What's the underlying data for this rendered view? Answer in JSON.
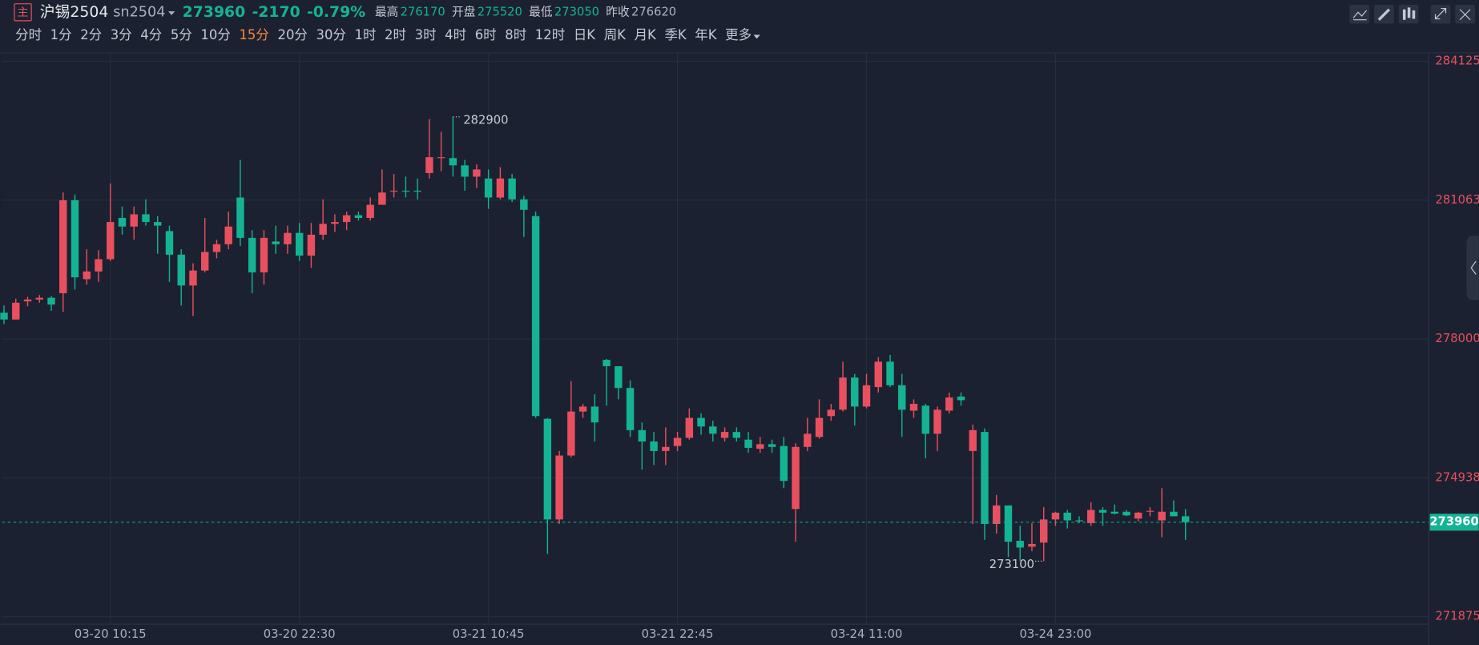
{
  "header": {
    "badge": "主",
    "name": "沪锡2504",
    "code": "sn2504",
    "price": 273960,
    "change": -2170,
    "change_pct": "-0.79%",
    "color": "#14b394",
    "stats": [
      {
        "label": "最高",
        "value": 276170,
        "color": "#14b394"
      },
      {
        "label": "开盘",
        "value": 275520,
        "color": "#14b394"
      },
      {
        "label": "最低",
        "value": 273050,
        "color": "#14b394"
      },
      {
        "label": "昨收",
        "value": 276620,
        "color": "#aab0bc"
      }
    ]
  },
  "toolbar": {
    "items": [
      {
        "label": "分时"
      },
      {
        "label": "1分"
      },
      {
        "label": "2分"
      },
      {
        "label": "3分"
      },
      {
        "label": "4分"
      },
      {
        "label": "5分"
      },
      {
        "label": "10分"
      },
      {
        "label": "15分",
        "active": true
      },
      {
        "label": "20分"
      },
      {
        "label": "30分"
      },
      {
        "label": "1时"
      },
      {
        "label": "2时"
      },
      {
        "label": "3时"
      },
      {
        "label": "4时"
      },
      {
        "label": "6时"
      },
      {
        "label": "8时"
      },
      {
        "label": "12时"
      },
      {
        "label": "日K"
      },
      {
        "label": "周K"
      },
      {
        "label": "月K"
      },
      {
        "label": "季K"
      },
      {
        "label": "年K"
      }
    ],
    "more": "更多"
  },
  "chart_data": {
    "type": "candlestick",
    "up_color": "#e8505f",
    "down_color": "#14b394",
    "grid": true,
    "axis_label_color": "#e8505f",
    "categories": [
      null,
      null,
      null,
      null,
      null,
      null,
      null,
      null,
      null,
      "03-20 10:15",
      null,
      null,
      null,
      null,
      null,
      null,
      null,
      null,
      null,
      null,
      null,
      null,
      null,
      null,
      null,
      "03-20 22:30",
      null,
      null,
      null,
      null,
      null,
      null,
      null,
      null,
      null,
      null,
      null,
      null,
      null,
      null,
      null,
      "03-21 10:45",
      null,
      null,
      null,
      null,
      null,
      null,
      null,
      null,
      null,
      null,
      null,
      null,
      null,
      null,
      null,
      "03-21 22:45",
      null,
      null,
      null,
      null,
      null,
      null,
      null,
      null,
      null,
      null,
      null,
      null,
      null,
      null,
      null,
      "03-24 11:00",
      null,
      null,
      null,
      null,
      null,
      null,
      null,
      null,
      null,
      null,
      null,
      null,
      null,
      null,
      null,
      "03-24 23:00",
      null,
      null,
      null,
      null,
      null,
      null,
      null,
      null,
      null,
      null,
      null
    ],
    "open": [
      278580,
      278430,
      278830,
      278870,
      278910,
      279010,
      281060,
      279320,
      279490,
      279760,
      280670,
      280480,
      280750,
      280580,
      280380,
      279860,
      279180,
      279510,
      279920,
      280090,
      281120,
      280230,
      279470,
      280150,
      280090,
      280340,
      279840,
      280300,
      280540,
      280580,
      280730,
      280670,
      280960,
      281250,
      281270,
      281270,
      281660,
      281990,
      281990,
      281830,
      281580,
      281540,
      281120,
      281540,
      281080,
      280710,
      276240,
      274020,
      275430,
      276400,
      276510,
      277540,
      277400,
      276920,
      275990,
      275740,
      275530,
      275640,
      275820,
      276260,
      276070,
      275820,
      275950,
      275780,
      275580,
      275680,
      275640,
      274250,
      275620,
      275840,
      276300,
      276440,
      277150,
      276510,
      276940,
      277500,
      276980,
      276420,
      276530,
      275910,
      276420,
      276730,
      275530,
      275950,
      273920,
      274330,
      273550,
      273420,
      273510,
      274020,
      274170,
      274000,
      273940,
      274230,
      274190,
      274190,
      274040,
      274190,
      274000,
      274190,
      274090
    ],
    "high": [
      278740,
      278890,
      278930,
      278970,
      278950,
      281230,
      281190,
      279980,
      279960,
      281430,
      280920,
      280920,
      281080,
      280710,
      280500,
      279980,
      279670,
      280670,
      280190,
      280810,
      281950,
      280400,
      280400,
      280500,
      280500,
      280560,
      280560,
      281080,
      280750,
      280810,
      280810,
      281120,
      281740,
      281640,
      281580,
      281540,
      282850,
      282570,
      282900,
      281950,
      281850,
      281740,
      281790,
      281640,
      281160,
      280810,
      276260,
      275530,
      277070,
      276570,
      276780,
      277560,
      277400,
      277090,
      276160,
      275950,
      276050,
      275950,
      276470,
      276360,
      276200,
      276050,
      276050,
      275950,
      275840,
      275780,
      275840,
      275700,
      276260,
      276670,
      276570,
      277500,
      277230,
      277230,
      277600,
      277650,
      277230,
      276670,
      276570,
      276510,
      276820,
      276820,
      276110,
      276030,
      274560,
      274330,
      273880,
      273940,
      274290,
      274190,
      274230,
      274090,
      274400,
      274290,
      274350,
      274230,
      274190,
      274290,
      274710,
      274440,
      274250
    ],
    "low": [
      278330,
      278430,
      278720,
      278800,
      278620,
      278600,
      279090,
      279200,
      279260,
      279720,
      280300,
      280190,
      280500,
      279880,
      279260,
      278740,
      278510,
      279470,
      279780,
      279980,
      280050,
      279010,
      279200,
      279880,
      279880,
      279720,
      279570,
      280190,
      280360,
      280400,
      280610,
      280610,
      280960,
      281120,
      281120,
      281080,
      281540,
      281700,
      281580,
      281270,
      281330,
      280870,
      281080,
      281020,
      280250,
      276260,
      273260,
      273920,
      275390,
      276260,
      275740,
      276530,
      276670,
      275840,
      275120,
      275220,
      275220,
      275530,
      275780,
      275890,
      275740,
      275740,
      275740,
      275490,
      275490,
      275490,
      274710,
      273530,
      275530,
      275800,
      276200,
      276400,
      276090,
      276470,
      276820,
      276940,
      275840,
      276260,
      275370,
      275530,
      276360,
      276530,
      273920,
      273570,
      273710,
      273190,
      273110,
      273320,
      273100,
      273880,
      273820,
      273940,
      273880,
      273880,
      274130,
      274090,
      273980,
      274090,
      273630,
      274090,
      273570
    ],
    "close": [
      278430,
      278800,
      278870,
      278910,
      278760,
      281060,
      279360,
      279490,
      279760,
      280580,
      280480,
      280750,
      280580,
      280500,
      279860,
      279180,
      279510,
      279920,
      280090,
      280480,
      280230,
      279470,
      280230,
      280090,
      280340,
      279840,
      280300,
      280540,
      280580,
      280730,
      280670,
      280960,
      281230,
      281270,
      281250,
      281250,
      282010,
      282010,
      281830,
      281580,
      281740,
      281120,
      281540,
      281080,
      280850,
      276300,
      274020,
      275430,
      276400,
      276510,
      276160,
      277400,
      276920,
      275990,
      275740,
      275530,
      275620,
      275820,
      276260,
      276070,
      275910,
      275950,
      275820,
      275600,
      275680,
      275620,
      274870,
      275620,
      275910,
      276260,
      276440,
      277150,
      276510,
      276980,
      277500,
      276980,
      276440,
      276570,
      275910,
      276440,
      276710,
      276650,
      275990,
      273920,
      274330,
      273530,
      273400,
      273480,
      274020,
      274170,
      274000,
      273980,
      274230,
      274170,
      274150,
      274110,
      274170,
      274210,
      274190,
      274090,
      273960
    ],
    "ylim": [
      271709,
      284291
    ],
    "yticks": [
      271875,
      274938,
      278000,
      281063,
      284125
    ],
    "last_price": 273960,
    "max_label": 282900,
    "min_label": 273100
  }
}
